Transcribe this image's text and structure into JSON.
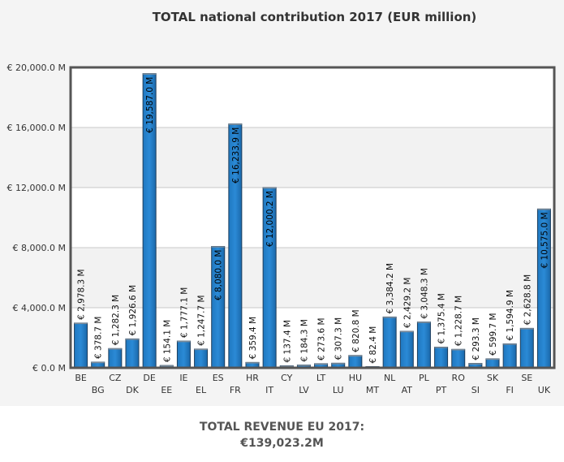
{
  "chart_data": {
    "type": "bar",
    "title": "TOTAL national contribution 2017 (EUR million)",
    "xlabel": "",
    "ylabel": "",
    "ylim": [
      0,
      20000
    ],
    "yticks": [
      0,
      4000,
      8000,
      12000,
      16000,
      20000
    ],
    "ytick_labels": [
      "€ 0.0 M",
      "€ 4,000.0 M",
      "€ 8,000.0 M",
      "€ 12,000.0 M",
      "€ 16,000.0 M",
      "€ 20,000.0 M"
    ],
    "grid": true,
    "legend": "none",
    "bar_color": "#1f6fb5",
    "categories": [
      "BE",
      "BG",
      "CZ",
      "DK",
      "DE",
      "EE",
      "IE",
      "EL",
      "ES",
      "FR",
      "HR",
      "IT",
      "CY",
      "LV",
      "LT",
      "LU",
      "HU",
      "MT",
      "NL",
      "AT",
      "PL",
      "PT",
      "RO",
      "SI",
      "SK",
      "FI",
      "SE",
      "UK"
    ],
    "values": [
      2978.3,
      378.7,
      1282.3,
      1926.6,
      19587.0,
      154.1,
      1777.1,
      1247.7,
      8080.0,
      16233.9,
      359.4,
      12000.2,
      137.4,
      184.3,
      273.6,
      307.3,
      820.8,
      82.4,
      3384.2,
      2429.2,
      3048.3,
      1375.4,
      1228.7,
      293.3,
      599.7,
      1594.9,
      2628.8,
      10575.0
    ],
    "data_labels": [
      "€ 2,978.3 M",
      "€ 378.7 M",
      "€ 1,282.3 M",
      "€ 1,926.6 M",
      "€ 19,587.0 M",
      "€ 154.1 M",
      "€ 1,777.1 M",
      "€ 1,247.7 M",
      "€ 8,080.0 M",
      "€ 16,233.9 M",
      "€ 359.4 M",
      "€ 12,000.2 M",
      "€ 137.4 M",
      "€ 184.3 M",
      "€ 273.6 M",
      "€ 307.3 M",
      "€ 820.8 M",
      "€ 82.4 M",
      "€ 3,384.2 M",
      "€ 2,429.2 M",
      "€ 3,048.3 M",
      "€ 1,375.4 M",
      "€ 1,228.7 M",
      "€ 293.3 M",
      "€ 599.7 M",
      "€ 1,594.9 M",
      "€ 2,628.8 M",
      "€ 10,575.0 M"
    ]
  },
  "summary": {
    "line1": "TOTAL REVENUE EU 2017:",
    "line2": "€139,023.2M"
  }
}
